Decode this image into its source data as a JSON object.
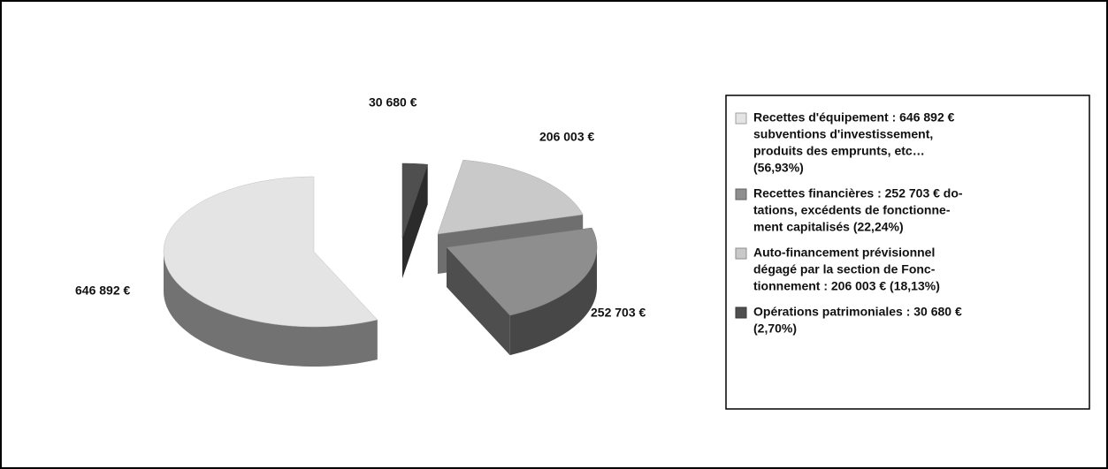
{
  "chart_data": {
    "type": "pie3d",
    "categories": [
      [
        "Recettes d'équipement : 646 892 €",
        "subventions d'investissement,",
        "produits des emprunts, etc…",
        "(56,93%)"
      ],
      [
        "Recettes financières : 252 703 € do-",
        "tations, excédents de fonctionne-",
        "ment capitalisés (22,24%)"
      ],
      [
        "Auto-financement prévisionnel",
        "dégagé par la section de Fonc-",
        "tionnement : 206 003 € (18,13%)"
      ],
      [
        "Opérations patrimoniales : 30 680 €",
        "(2,70%)"
      ]
    ],
    "values": [
      646892,
      252703,
      206003,
      30680
    ],
    "value_labels": [
      "646 892 €",
      "252 703 €",
      "206 003 €",
      "30 680 €"
    ],
    "colors": [
      "#e4e4e4",
      "#8e8e8e",
      "#c9c9c9",
      "#4f4f4f"
    ],
    "legend": "right"
  }
}
